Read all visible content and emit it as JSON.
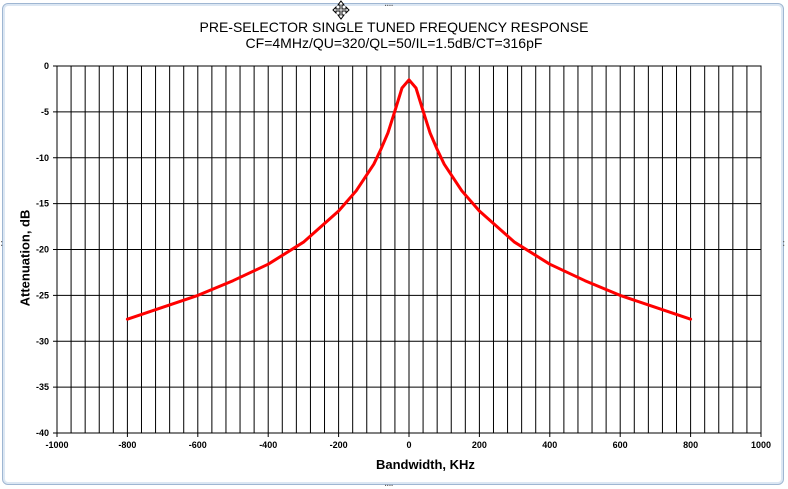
{
  "chart_data": {
    "type": "line",
    "title": "PRE-SELECTOR SINGLE TUNED FREQUENCY RESPONSE",
    "subtitle": "CF=4MHz/QU=320/QL=50/IL=1.5dB/CT=316pF",
    "xlabel": "Bandwidth, KHz",
    "ylabel": "Attenuation, dB",
    "xlim": [
      -1000,
      1000
    ],
    "ylim": [
      -40,
      0
    ],
    "x_ticks": [
      "-1000",
      "-800",
      "-600",
      "-400",
      "-200",
      "0",
      "200",
      "400",
      "600",
      "800",
      "1000"
    ],
    "y_ticks": [
      "0",
      "-5",
      "-10",
      "-15",
      "-20",
      "-25",
      "-30",
      "-35",
      "-40"
    ],
    "grid": true,
    "legend": "none",
    "series": [
      {
        "color": "#ff0000",
        "x": [
          -800,
          -700,
          -600,
          -500,
          -400,
          -300,
          -200,
          -150,
          -100,
          -80,
          -60,
          -40,
          -20,
          0,
          20,
          40,
          60,
          80,
          100,
          150,
          200,
          300,
          400,
          500,
          600,
          700,
          800
        ],
        "y": [
          -27.6,
          -26.3,
          -25.0,
          -23.4,
          -21.6,
          -19.2,
          -15.8,
          -13.6,
          -10.7,
          -9.1,
          -7.3,
          -4.9,
          -2.4,
          -1.5,
          -2.4,
          -4.9,
          -7.3,
          -9.1,
          -10.7,
          -13.6,
          -15.8,
          -19.2,
          -21.6,
          -23.4,
          -25.0,
          -26.3,
          -27.6
        ]
      }
    ]
  }
}
